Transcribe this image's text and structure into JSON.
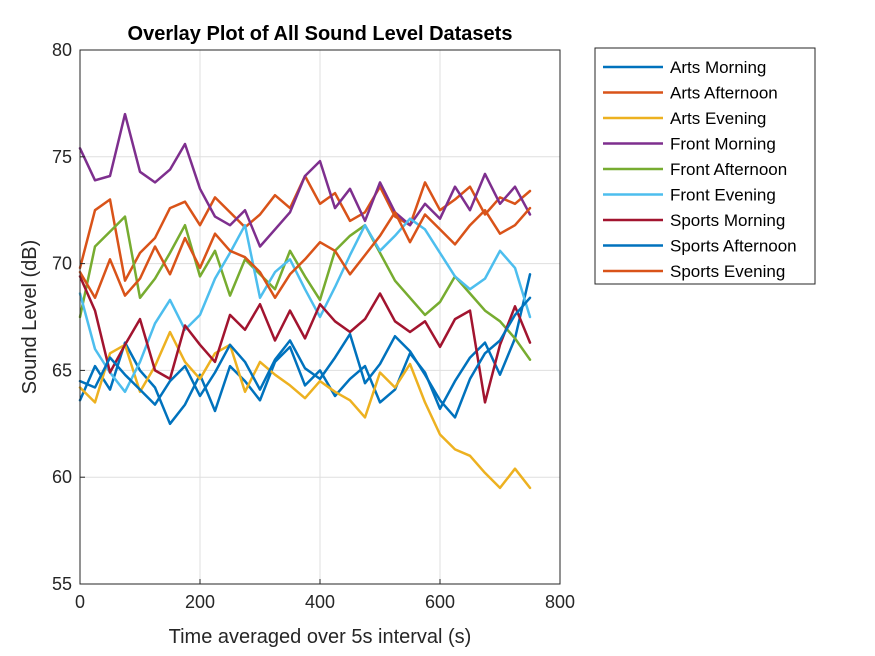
{
  "chart_data": {
    "type": "line",
    "title": "Overlay Plot of All Sound Level Datasets",
    "xlabel": "Time averaged over 5s interval (s)",
    "ylabel": "Sound Level (dB)",
    "xlim": [
      0,
      800
    ],
    "ylim": [
      55,
      80
    ],
    "xticks": [
      0,
      200,
      400,
      600,
      800
    ],
    "yticks": [
      55,
      60,
      65,
      70,
      75,
      80
    ],
    "grid": true,
    "legend_position": "outside-top-right",
    "x": [
      0,
      25,
      50,
      75,
      100,
      125,
      150,
      175,
      200,
      225,
      250,
      275,
      300,
      325,
      350,
      375,
      400,
      425,
      450,
      475,
      500,
      525,
      550,
      575,
      600,
      625,
      650,
      675,
      700,
      725,
      750
    ],
    "series": [
      {
        "name": "Arts Morning",
        "color": "#0072BD",
        "values": [
          63.6,
          65.2,
          64.1,
          66.3,
          65.0,
          64.2,
          62.5,
          63.4,
          64.8,
          63.1,
          65.2,
          64.5,
          63.6,
          65.4,
          66.1,
          64.3,
          65.0,
          63.8,
          64.6,
          65.2,
          63.5,
          64.1,
          65.8,
          64.9,
          63.2,
          64.5,
          65.6,
          66.3,
          64.8,
          66.5,
          69.5
        ]
      },
      {
        "name": "Arts Afternoon",
        "color": "#D95319",
        "values": [
          69.8,
          72.5,
          73.0,
          69.2,
          70.5,
          71.2,
          72.6,
          72.9,
          71.8,
          73.1,
          72.4,
          71.7,
          72.3,
          73.2,
          72.6,
          74.1,
          72.8,
          73.3,
          72.0,
          72.4,
          73.6,
          72.2,
          71.8,
          73.8,
          72.5,
          73.0,
          73.6,
          72.3,
          73.1,
          72.8,
          73.4
        ]
      },
      {
        "name": "Arts Evening",
        "color": "#EDB120",
        "values": [
          64.2,
          63.5,
          65.8,
          66.2,
          64.0,
          65.2,
          66.8,
          65.4,
          64.6,
          65.8,
          66.2,
          64.0,
          65.4,
          64.8,
          64.3,
          63.7,
          64.5,
          64.0,
          63.6,
          62.8,
          64.9,
          64.2,
          65.3,
          63.5,
          62.0,
          61.3,
          61.0,
          60.2,
          59.5,
          60.4,
          59.5
        ]
      },
      {
        "name": "Front Morning",
        "color": "#7E2F8E",
        "values": [
          75.4,
          73.9,
          74.1,
          77.0,
          74.3,
          73.8,
          74.4,
          75.6,
          73.5,
          72.2,
          71.8,
          72.5,
          70.8,
          71.6,
          72.4,
          74.1,
          74.8,
          72.6,
          73.5,
          72.0,
          73.8,
          72.4,
          71.8,
          72.8,
          72.1,
          73.6,
          72.5,
          74.2,
          72.8,
          73.6,
          72.3
        ]
      },
      {
        "name": "Front Afternoon",
        "color": "#77AC30",
        "values": [
          67.5,
          70.8,
          71.5,
          72.2,
          68.4,
          69.3,
          70.5,
          71.8,
          69.4,
          70.6,
          68.5,
          70.2,
          69.5,
          68.8,
          70.6,
          69.4,
          68.3,
          70.6,
          71.3,
          71.8,
          70.5,
          69.2,
          68.4,
          67.6,
          68.2,
          69.4,
          68.6,
          67.8,
          67.3,
          66.5,
          65.5
        ]
      },
      {
        "name": "Front Evening",
        "color": "#4DBEEE",
        "values": [
          68.6,
          66.0,
          64.9,
          64.0,
          65.4,
          67.2,
          68.3,
          66.9,
          67.6,
          69.3,
          70.5,
          71.8,
          68.4,
          69.6,
          70.2,
          68.8,
          67.5,
          68.9,
          70.4,
          71.8,
          70.6,
          71.3,
          72.1,
          71.6,
          70.5,
          69.4,
          68.8,
          69.3,
          70.6,
          69.8,
          67.5
        ]
      },
      {
        "name": "Sports Morning",
        "color": "#A2142F",
        "values": [
          69.4,
          67.8,
          64.9,
          66.2,
          67.4,
          65.0,
          64.6,
          67.1,
          66.2,
          65.4,
          67.6,
          66.9,
          68.1,
          66.4,
          67.8,
          66.5,
          68.1,
          67.3,
          66.8,
          67.4,
          68.6,
          67.3,
          66.8,
          67.3,
          66.1,
          67.4,
          67.8,
          63.5,
          66.2,
          68.0,
          66.3
        ]
      },
      {
        "name": "Sports Afternoon",
        "color": "#0072BD",
        "values": [
          64.5,
          64.2,
          65.6,
          64.8,
          64.1,
          63.4,
          64.5,
          65.2,
          63.8,
          64.9,
          66.2,
          65.4,
          64.1,
          65.5,
          66.4,
          65.1,
          64.6,
          65.6,
          66.7,
          64.4,
          65.3,
          66.6,
          65.9,
          64.8,
          63.6,
          62.8,
          64.6,
          65.8,
          66.4,
          67.6,
          68.4
        ]
      },
      {
        "name": "Sports Evening",
        "color": "#D95319",
        "values": [
          69.6,
          68.4,
          70.2,
          68.5,
          69.3,
          70.8,
          69.5,
          71.2,
          69.8,
          71.4,
          70.6,
          70.3,
          69.6,
          68.4,
          69.5,
          70.2,
          71.0,
          70.6,
          69.5,
          70.4,
          71.3,
          72.4,
          71.0,
          72.3,
          71.6,
          70.9,
          71.8,
          72.5,
          71.4,
          71.8,
          72.6
        ]
      }
    ]
  }
}
